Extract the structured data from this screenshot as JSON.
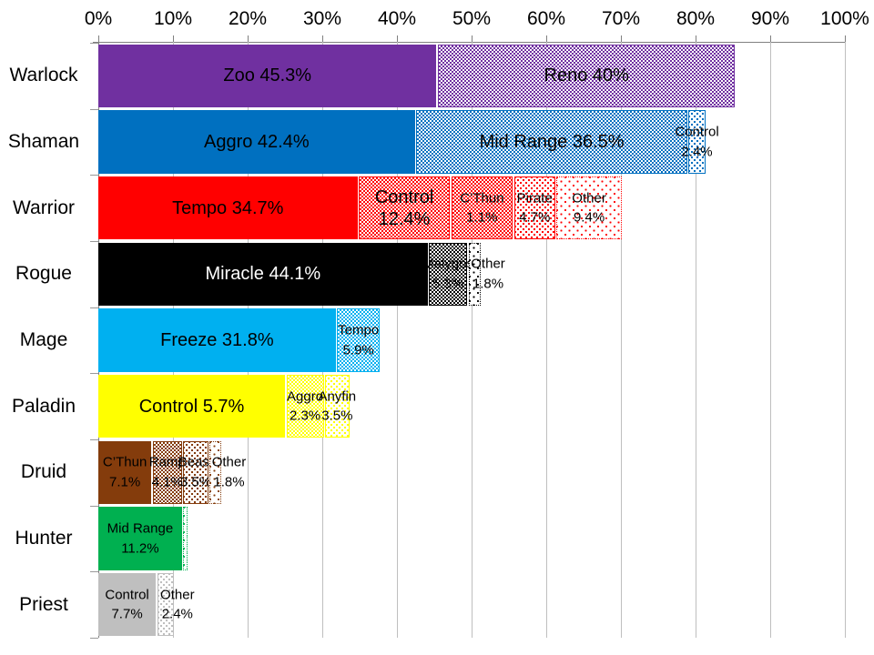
{
  "chart_data": {
    "type": "bar",
    "orientation": "horizontal",
    "stacked": true,
    "title": "",
    "xlabel": "",
    "ylabel": "",
    "xlim": [
      0,
      100
    ],
    "x_tick_labels": [
      "0%",
      "10%",
      "20%",
      "30%",
      "40%",
      "50%",
      "60%",
      "70%",
      "80%",
      "90%",
      "100%"
    ],
    "grid": true,
    "legend": "none",
    "categories": [
      "Warlock",
      "Shaman",
      "Warrior",
      "Rogue",
      "Mage",
      "Paladin",
      "Druid",
      "Hunter",
      "Priest"
    ],
    "rows": [
      {
        "category": "Warlock",
        "color": "#7030A0",
        "segments": [
          {
            "name": "Zoo",
            "value": 45.3,
            "label_lines": [
              "Zoo 45.3%"
            ],
            "pattern": "solid",
            "label_size": "lg"
          },
          {
            "name": "Reno",
            "value": 40,
            "label_lines": [
              "Reno 40%"
            ],
            "pattern": "checker",
            "label_size": "lg"
          }
        ]
      },
      {
        "category": "Shaman",
        "color": "#0070C0",
        "segments": [
          {
            "name": "Aggro",
            "value": 42.4,
            "label_lines": [
              "Aggro 42.4%"
            ],
            "pattern": "solid",
            "label_size": "lg"
          },
          {
            "name": "Mid Range",
            "value": 36.5,
            "label_lines": [
              "Mid Range 36.5%"
            ],
            "pattern": "checker",
            "label_size": "lg"
          },
          {
            "name": "Control",
            "value": 2.4,
            "label_lines": [
              "Control",
              "2.4%"
            ],
            "pattern": "dots-md",
            "label_size": "sm"
          }
        ]
      },
      {
        "category": "Warrior",
        "color": "#FF0000",
        "segments": [
          {
            "name": "Tempo",
            "value": 34.7,
            "label_lines": [
              "Tempo 34.7%"
            ],
            "pattern": "solid",
            "label_size": "lg"
          },
          {
            "name": "Control",
            "value": 12.4,
            "label_lines": [
              "Control",
              "12.4%"
            ],
            "pattern": "checker",
            "label_size": "lg"
          },
          {
            "name": "C’Thun",
            "value": 1.1,
            "label_lines": [
              "C’Thun",
              "1.1%"
            ],
            "pattern": "checker",
            "label_size": "sm",
            "display_width": 8.4
          },
          {
            "name": "Pirate",
            "value": 4.7,
            "label_lines": [
              "Pirate",
              "4.7%"
            ],
            "pattern": "dots-md",
            "label_size": "sm",
            "display_width": 5.7
          },
          {
            "name": "Other",
            "value": 9.4,
            "label_lines": [
              "Other",
              "9.4%"
            ],
            "pattern": "dots-xs",
            "label_size": "sm",
            "display_width": 8.9
          }
        ]
      },
      {
        "category": "Rogue",
        "color": "#000000",
        "segments": [
          {
            "name": "Miracle",
            "value": 44.1,
            "label_lines": [
              "Miracle 44.1%"
            ],
            "pattern": "solid",
            "label_size": "lg",
            "text_color": "#FFFFFF"
          },
          {
            "name": "Malygos",
            "value": 5.3,
            "label_lines": [
              "Malygos",
              "5.3%"
            ],
            "pattern": "checker",
            "label_size": "sm"
          },
          {
            "name": "Other",
            "value": 1.8,
            "label_lines": [
              "Other",
              "1.8%"
            ],
            "pattern": "dots-xs",
            "label_size": "sm",
            "label_pos": "spill"
          }
        ]
      },
      {
        "category": "Mage",
        "color": "#00B0F0",
        "segments": [
          {
            "name": "Freeze",
            "value": 31.8,
            "label_lines": [
              "Freeze 31.8%"
            ],
            "pattern": "solid",
            "label_size": "lg"
          },
          {
            "name": "Tempo",
            "value": 5.9,
            "label_lines": [
              "Tempo",
              "5.9%"
            ],
            "pattern": "checker",
            "label_size": "sm"
          }
        ]
      },
      {
        "category": "Paladin",
        "color": "#FFFF00",
        "segments": [
          {
            "name": "Control",
            "value": 5.7,
            "label_lines": [
              "Control 5.7%"
            ],
            "pattern": "solid",
            "label_size": "lg",
            "display_width": 25.0
          },
          {
            "name": "Aggro",
            "value": 2.3,
            "label_lines": [
              "Aggro",
              "2.3%"
            ],
            "pattern": "checker",
            "label_size": "sm",
            "display_width": 5.2
          },
          {
            "name": "Anyfin",
            "value": 3.5,
            "label_lines": [
              "Anyfin",
              "3.5%"
            ],
            "pattern": "dots-md",
            "label_size": "sm",
            "display_width": 3.4
          }
        ]
      },
      {
        "category": "Druid",
        "color": "#843C0C",
        "segments": [
          {
            "name": "C’Thun",
            "value": 7.1,
            "label_lines": [
              "C’Thun",
              "7.1%"
            ],
            "pattern": "solid",
            "label_size": "sm"
          },
          {
            "name": "Ramp",
            "value": 4.1,
            "label_lines": [
              "Ramp",
              "4.1%"
            ],
            "pattern": "checker",
            "label_size": "sm"
          },
          {
            "name": "Beast",
            "value": 3.5,
            "label_lines": [
              "Beast",
              "3.5%"
            ],
            "pattern": "dots-md",
            "label_size": "sm"
          },
          {
            "name": "Other",
            "value": 1.8,
            "label_lines": [
              "Other",
              "1.8%"
            ],
            "pattern": "dots-xs",
            "label_size": "sm",
            "label_pos": "spill"
          }
        ]
      },
      {
        "category": "Hunter",
        "color": "#00B050",
        "segments": [
          {
            "name": "Mid Range",
            "value": 11.2,
            "label_lines": [
              "Mid Range",
              "11.2%"
            ],
            "pattern": "solid",
            "label_size": "sm"
          },
          {
            "name": "",
            "label_lines": [],
            "pattern": "dots-xs",
            "display_width": 0.7
          }
        ]
      },
      {
        "category": "Priest",
        "color": "#BFBFBF",
        "segments": [
          {
            "name": "Control",
            "value": 7.7,
            "label_lines": [
              "Control",
              "7.7%"
            ],
            "pattern": "solid",
            "label_size": "sm"
          },
          {
            "name": "Other",
            "value": 2.4,
            "label_lines": [
              "Other",
              "2.4%"
            ],
            "pattern": "dots-md",
            "label_size": "sm",
            "label_pos": "spill"
          }
        ]
      }
    ],
    "style": {
      "gridline_color": "#BFBFBF",
      "axis_color": "#808080",
      "label_color": "#000000"
    }
  }
}
